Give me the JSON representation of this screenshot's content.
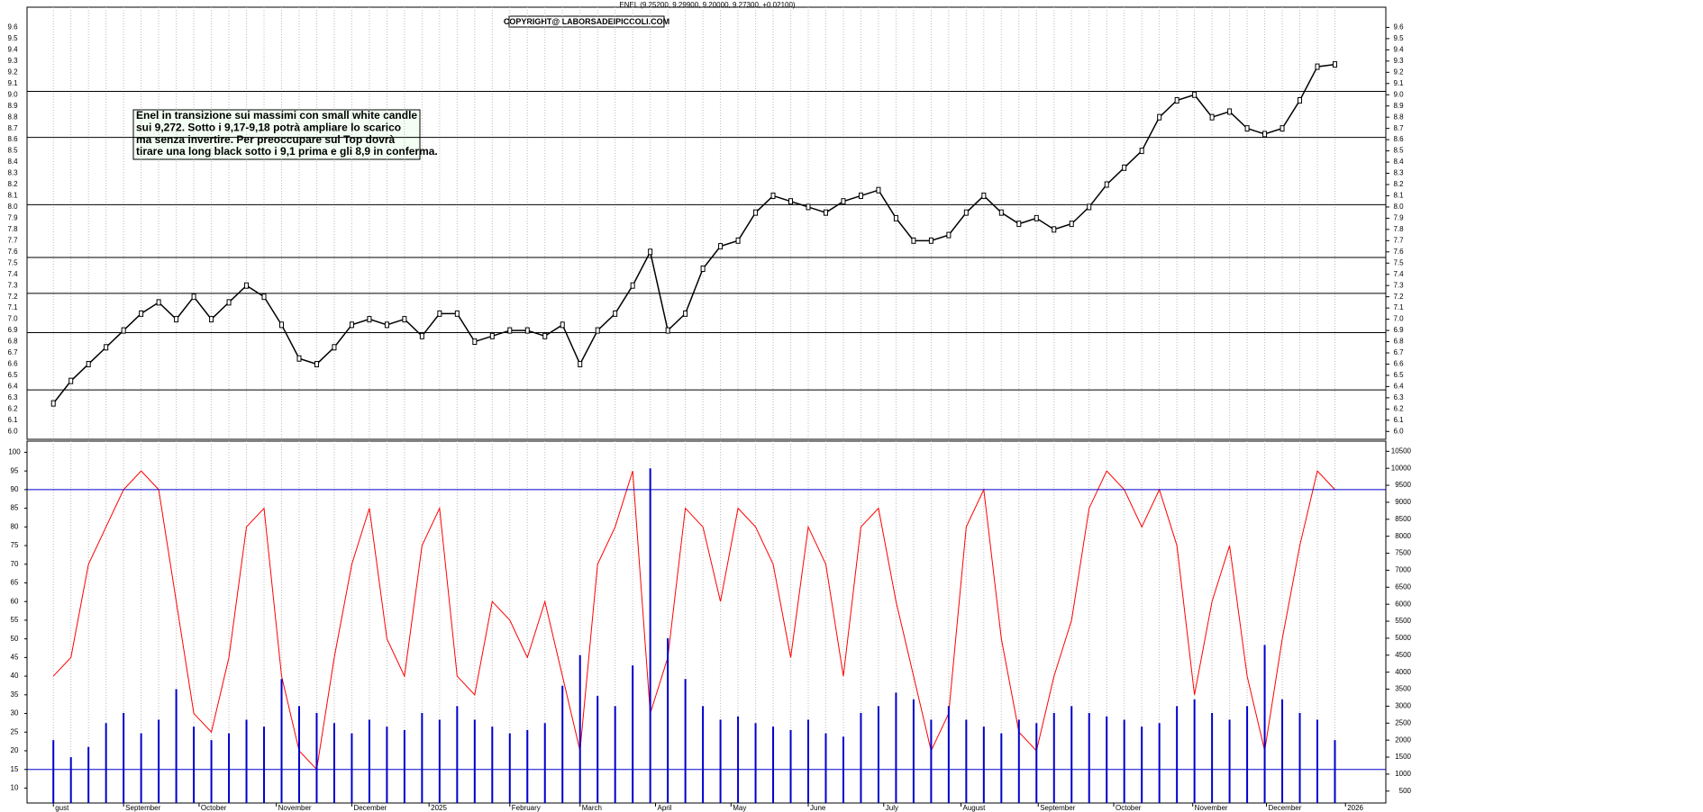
{
  "chart_data": [
    {
      "type": "line",
      "title": "ENEL (9.25200, 9.29900, 9.20000, 9.27300, +0.02100)",
      "copyright": "COPYRIGHT@ LABORSADEIPICCOLI.COM",
      "annotation": [
        "Enel in transizione sui massimi con small white candle",
        "sui 9,272. Sotto i 9,17-9,18 potrà ampliare lo scarico",
        "ma senza invertire. Per preoccupare sul Top dovrà",
        "tirare una long black sotto i 9,1 prima e gli 8,9 in conferma."
      ],
      "x": [
        0,
        1,
        2,
        3,
        4,
        5,
        6,
        7,
        8,
        9,
        10,
        11,
        12,
        13,
        14,
        15,
        16,
        17,
        18,
        19,
        20,
        21,
        22,
        23,
        24,
        25,
        26,
        27,
        28,
        29,
        30,
        31,
        32,
        33,
        34,
        35,
        36,
        37,
        38,
        39,
        40,
        41,
        42,
        43,
        44,
        45,
        46,
        47,
        48,
        49,
        50,
        51,
        52,
        53,
        54,
        55,
        56,
        57,
        58,
        59,
        60,
        61,
        62,
        63,
        64,
        65,
        66,
        67,
        68,
        69,
        70,
        71,
        72,
        73
      ],
      "series": [
        {
          "color": "#000000",
          "values": [
            6.25,
            6.45,
            6.6,
            6.75,
            6.9,
            7.05,
            7.15,
            7.0,
            7.2,
            7.0,
            7.15,
            7.3,
            7.2,
            6.95,
            6.65,
            6.6,
            6.75,
            6.95,
            7.0,
            6.95,
            7.0,
            6.85,
            7.05,
            7.05,
            6.8,
            6.85,
            6.9,
            6.9,
            6.85,
            6.95,
            6.6,
            6.9,
            7.05,
            7.3,
            7.6,
            6.9,
            7.05,
            7.45,
            7.65,
            7.7,
            7.95,
            8.1,
            8.05,
            8.0,
            7.95,
            8.05,
            8.1,
            8.15,
            7.9,
            7.7,
            7.7,
            7.75,
            7.95,
            8.1,
            7.95,
            7.85,
            7.9,
            7.8,
            7.85,
            8.0,
            8.2,
            8.35,
            8.5,
            8.8,
            8.95,
            9.0,
            8.8,
            8.85,
            8.7,
            8.65,
            8.7,
            8.95,
            9.25,
            9.27
          ]
        }
      ],
      "levels": [
        9.03,
        8.62,
        8.02,
        7.55,
        7.23,
        6.88,
        6.37
      ],
      "xlim": [
        -1.5,
        75.9
      ],
      "ylim": [
        5.93,
        9.78
      ],
      "yticks": [
        {
          "value": 6,
          "label": "6.0"
        },
        6.1,
        6.2,
        6.3,
        6.4,
        6.5,
        6.6,
        6.7,
        6.8,
        6.9,
        {
          "value": 7,
          "label": "7.0"
        },
        7.1,
        7.2,
        7.3,
        7.4,
        7.5,
        7.6,
        7.7,
        7.8,
        7.9,
        {
          "value": 8,
          "label": "8.0"
        },
        8.1,
        8.2,
        8.3,
        8.4,
        8.5,
        8.6,
        8.7,
        8.8,
        8.9,
        {
          "value": 9,
          "label": "9.0"
        },
        9.1,
        9.2,
        9.3,
        9.4,
        9.5,
        9.6
      ],
      "grid": true
    },
    {
      "type": "bar",
      "x": [
        0,
        1,
        2,
        3,
        4,
        5,
        6,
        7,
        8,
        9,
        10,
        11,
        12,
        13,
        14,
        15,
        16,
        17,
        18,
        19,
        20,
        21,
        22,
        23,
        24,
        25,
        26,
        27,
        28,
        29,
        30,
        31,
        32,
        33,
        34,
        35,
        36,
        37,
        38,
        39,
        40,
        41,
        42,
        43,
        44,
        45,
        46,
        47,
        48,
        49,
        50,
        51,
        52,
        53,
        54,
        55,
        56,
        57,
        58,
        59,
        60,
        61,
        62,
        63,
        64,
        65,
        66,
        67,
        68,
        69,
        70,
        71,
        72,
        73
      ],
      "series": [
        {
          "color": "#ff0000",
          "values": [
            40,
            45,
            70,
            80,
            90,
            95,
            90,
            60,
            30,
            25,
            45,
            80,
            85,
            40,
            20,
            15,
            45,
            70,
            85,
            50,
            40,
            75,
            85,
            40,
            35,
            60,
            55,
            45,
            60,
            40,
            20,
            70,
            80,
            95,
            30,
            45,
            85,
            80,
            60,
            85,
            80,
            70,
            45,
            80,
            70,
            40,
            80,
            85,
            60,
            40,
            20,
            30,
            80,
            90,
            50,
            25,
            20,
            40,
            55,
            85,
            95,
            90,
            80,
            90,
            75,
            35,
            60,
            75,
            40,
            20,
            50,
            75,
            95,
            90
          ]
        },
        {
          "color": "#0000cc",
          "axis": "y2",
          "values": [
            2000,
            1500,
            1800,
            2500,
            2800,
            2200,
            2600,
            3500,
            2400,
            2000,
            2200,
            2600,
            2400,
            3800,
            3000,
            2800,
            2500,
            2200,
            2600,
            2400,
            2300,
            2800,
            2600,
            3000,
            2600,
            2400,
            2200,
            2300,
            2500,
            3600,
            4500,
            3300,
            3000,
            4200,
            10000,
            5000,
            3800,
            3000,
            2600,
            2700,
            2500,
            2400,
            2300,
            2600,
            2200,
            2100,
            2800,
            3000,
            3400,
            3200,
            2600,
            3000,
            2600,
            2400,
            2200,
            2600,
            2500,
            2800,
            3000,
            2800,
            2700,
            2600,
            2400,
            2500,
            3000,
            3200,
            2800,
            2600,
            3000,
            4800,
            3200,
            2800,
            2600,
            2000
          ]
        }
      ],
      "reference_lines": [
        90,
        15
      ],
      "xlim": [
        -1.5,
        75.9
      ],
      "xticks": [
        {
          "value": 0,
          "label": "gust"
        },
        {
          "value": 4,
          "label": "September"
        },
        {
          "value": 8.3,
          "label": "October"
        },
        {
          "value": 12.7,
          "label": "November"
        },
        {
          "value": 17,
          "label": "December"
        },
        {
          "value": 21.4,
          "label": "2025"
        },
        {
          "value": 26,
          "label": "February"
        },
        {
          "value": 30,
          "label": "March"
        },
        {
          "value": 34.3,
          "label": "April"
        },
        {
          "value": 38.6,
          "label": "May"
        },
        {
          "value": 43,
          "label": "June"
        },
        {
          "value": 47.3,
          "label": "July"
        },
        {
          "value": 51.7,
          "label": "August"
        },
        {
          "value": 56.1,
          "label": "September"
        },
        {
          "value": 60.4,
          "label": "October"
        },
        {
          "value": 64.9,
          "label": "November"
        },
        {
          "value": 69.1,
          "label": "December"
        },
        {
          "value": 73.6,
          "label": "2026"
        }
      ],
      "ylim": [
        6,
        103
      ],
      "yticks": [
        10,
        15,
        20,
        25,
        30,
        35,
        40,
        45,
        50,
        55,
        60,
        65,
        70,
        75,
        80,
        85,
        90,
        95,
        100
      ],
      "y2lim": [
        150,
        10800
      ],
      "y2ticks": [
        500,
        1000,
        1500,
        2000,
        2500,
        3000,
        3500,
        4000,
        4500,
        5000,
        5500,
        6000,
        6500,
        7000,
        7500,
        8000,
        8500,
        9000,
        9500,
        10000,
        10500
      ],
      "grid": true
    }
  ]
}
